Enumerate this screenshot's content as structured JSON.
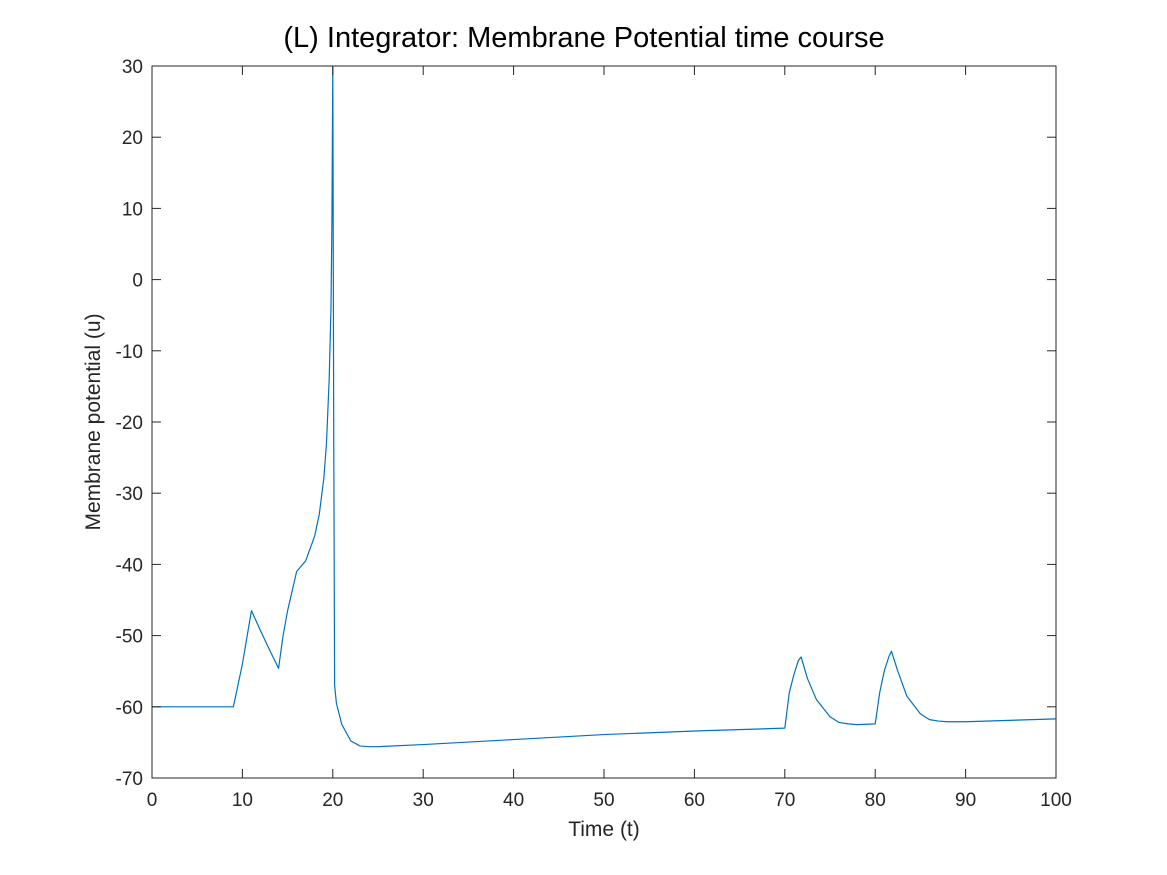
{
  "chart_data": {
    "type": "line",
    "title": "(L) Integrator: Membrane Potential time course",
    "xlabel": "Time (t)",
    "ylabel": "Membrane potential (u)",
    "xlim": [
      0,
      100
    ],
    "ylim": [
      -70,
      30
    ],
    "xticks": [
      0,
      10,
      20,
      30,
      40,
      50,
      60,
      70,
      80,
      90,
      100
    ],
    "yticks": [
      -70,
      -60,
      -50,
      -40,
      -30,
      -20,
      -10,
      0,
      10,
      20,
      30
    ],
    "grid": false,
    "legend": "none",
    "colors": {
      "line": "#0072BD",
      "axes": "#262626"
    },
    "series": [
      {
        "x": [
          0,
          9,
          9.5,
          10,
          11,
          12,
          13,
          14,
          14.5,
          15,
          16,
          17,
          18,
          18.5,
          19,
          19.3,
          19.6,
          19.8,
          19.9,
          20,
          20.1,
          20.2,
          20.4,
          21,
          22,
          23,
          24,
          25,
          30,
          40,
          50,
          60,
          70,
          70.5,
          71,
          71.5,
          71.8,
          72.5,
          73.5,
          75,
          76,
          77,
          78,
          80,
          80.5,
          81,
          81.5,
          81.8,
          82.5,
          83.5,
          85,
          86,
          87,
          88,
          90,
          100
        ],
        "y": [
          -60,
          -60,
          -57,
          -54,
          -46.5,
          -49.3,
          -52,
          -54.6,
          -50,
          -46.5,
          -41,
          -39.5,
          -36,
          -33,
          -28,
          -23,
          -14,
          -4,
          8,
          30,
          -20,
          -57,
          -59.5,
          -62.5,
          -64.8,
          -65.5,
          -65.6,
          -65.6,
          -65.3,
          -64.6,
          -63.9,
          -63.4,
          -63,
          -58,
          -55.5,
          -53.5,
          -53,
          -56,
          -59,
          -61.4,
          -62.2,
          -62.4,
          -62.5,
          -62.4,
          -58,
          -55,
          -53,
          -52.2,
          -55,
          -58.5,
          -61,
          -61.8,
          -62,
          -62.1,
          -62.1,
          -61.7
        ]
      }
    ]
  }
}
